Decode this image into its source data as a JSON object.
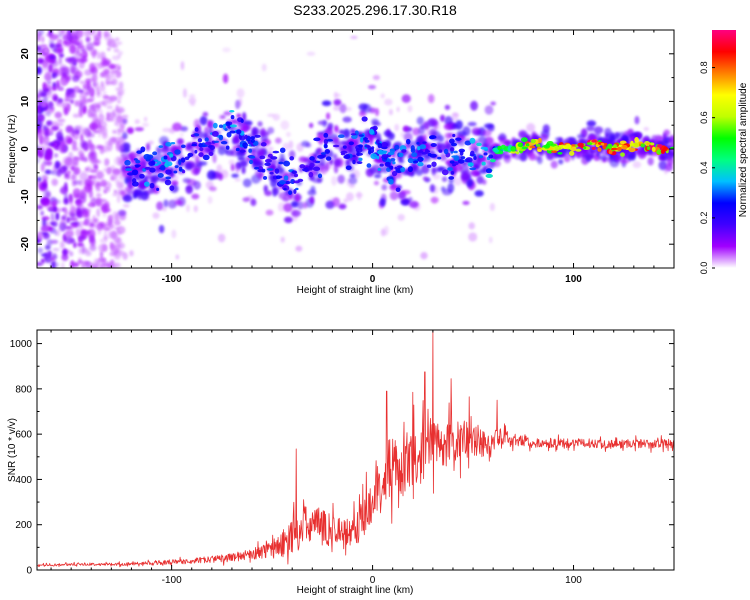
{
  "title": "S233.2025.296.17.30.R18",
  "chart_data": [
    {
      "type": "heatmap",
      "xlabel": "Height of straight line (km)",
      "ylabel": "Frequency (Hz)",
      "xlim": [
        -167,
        150
      ],
      "ylim": [
        -25,
        25
      ],
      "xticks": [
        -100,
        0,
        100
      ],
      "yticks": [
        -20,
        -10,
        0,
        10,
        20
      ],
      "xtick_labels": [
        "-100",
        "0",
        "100"
      ],
      "ytick_labels": [
        "-20",
        "-10",
        "0",
        "10",
        "20"
      ],
      "colorbar": {
        "label": "Normalized spectral amplitude",
        "range": [
          0,
          0.95
        ],
        "ticks": [
          0.0,
          0.2,
          0.4,
          0.6,
          0.8
        ],
        "tick_labels": [
          "0.0",
          "0.2",
          "0.4",
          "0.6",
          "0.8"
        ],
        "colormap": [
          "#ffffff",
          "#a000ff",
          "#4000ff",
          "#0000ff",
          "#00c0ff",
          "#00ff80",
          "#00ff00",
          "#c0ff00",
          "#ffff00",
          "#ff8000",
          "#ff0000",
          "#ff0080"
        ]
      },
      "ridge": {
        "x": [
          -120,
          -110,
          -100,
          -90,
          -80,
          -70,
          -60,
          -50,
          -40,
          -30,
          -20,
          -10,
          0,
          10,
          20,
          30,
          40,
          50,
          60,
          70,
          80,
          90,
          100,
          110,
          120,
          130,
          140,
          150
        ],
        "freq": [
          -4,
          -5,
          -3,
          -1,
          1,
          4,
          0,
          -4,
          -8,
          -3,
          1,
          0,
          2,
          -3,
          -2,
          0,
          0,
          -2,
          -1,
          0,
          1,
          0,
          0,
          1,
          0,
          1,
          0,
          0
        ],
        "peak_amplitude": [
          0.3,
          0.35,
          0.35,
          0.25,
          0.3,
          0.35,
          0.3,
          0.3,
          0.3,
          0.25,
          0.3,
          0.3,
          0.35,
          0.3,
          0.35,
          0.3,
          0.3,
          0.35,
          0.45,
          0.7,
          0.8,
          0.85,
          0.9,
          0.9,
          0.9,
          0.9,
          0.9,
          0.9
        ]
      }
    },
    {
      "type": "line",
      "xlabel": "Height of straight line (km)",
      "ylabel": "SNR (10 * v/v)",
      "xlim": [
        -167,
        150
      ],
      "ylim": [
        0,
        1060
      ],
      "xticks": [
        -100,
        0,
        100
      ],
      "yticks": [
        0,
        200,
        400,
        600,
        800,
        1000
      ],
      "xtick_labels": [
        "-100",
        "0",
        "100"
      ],
      "ytick_labels": [
        "0",
        "200",
        "400",
        "600",
        "800",
        "1000"
      ],
      "color": "#e83030",
      "series": [
        {
          "name": "SNR",
          "x": [
            -167,
            -150,
            -130,
            -110,
            -90,
            -70,
            -55,
            -45,
            -40,
            -35,
            -30,
            -25,
            -20,
            -15,
            -10,
            -5,
            0,
            5,
            10,
            15,
            20,
            25,
            30,
            35,
            40,
            45,
            50,
            55,
            60,
            65,
            70,
            80,
            90,
            100,
            110,
            120,
            130,
            140,
            150
          ],
          "y": [
            20,
            25,
            25,
            30,
            40,
            55,
            80,
            110,
            160,
            190,
            200,
            190,
            180,
            160,
            170,
            220,
            330,
            380,
            450,
            430,
            480,
            520,
            560,
            550,
            560,
            580,
            570,
            560,
            560,
            580,
            580,
            560,
            560,
            560,
            560,
            555,
            560,
            555,
            560
          ],
          "noise": [
            5,
            5,
            6,
            8,
            12,
            18,
            30,
            60,
            90,
            90,
            90,
            80,
            80,
            70,
            70,
            90,
            110,
            120,
            130,
            120,
            130,
            130,
            120,
            110,
            100,
            90,
            80,
            70,
            60,
            45,
            35,
            20,
            20,
            20,
            20,
            20,
            20,
            20,
            20
          ]
        }
      ],
      "spikes": [
        {
          "x": -38,
          "y": 535
        },
        {
          "x": 7,
          "y": 790
        },
        {
          "x": 20,
          "y": 785
        },
        {
          "x": 26,
          "y": 875
        },
        {
          "x": 30,
          "y": 1060
        },
        {
          "x": 39,
          "y": 845
        },
        {
          "x": 48,
          "y": 765
        },
        {
          "x": 62,
          "y": 750
        }
      ]
    }
  ]
}
